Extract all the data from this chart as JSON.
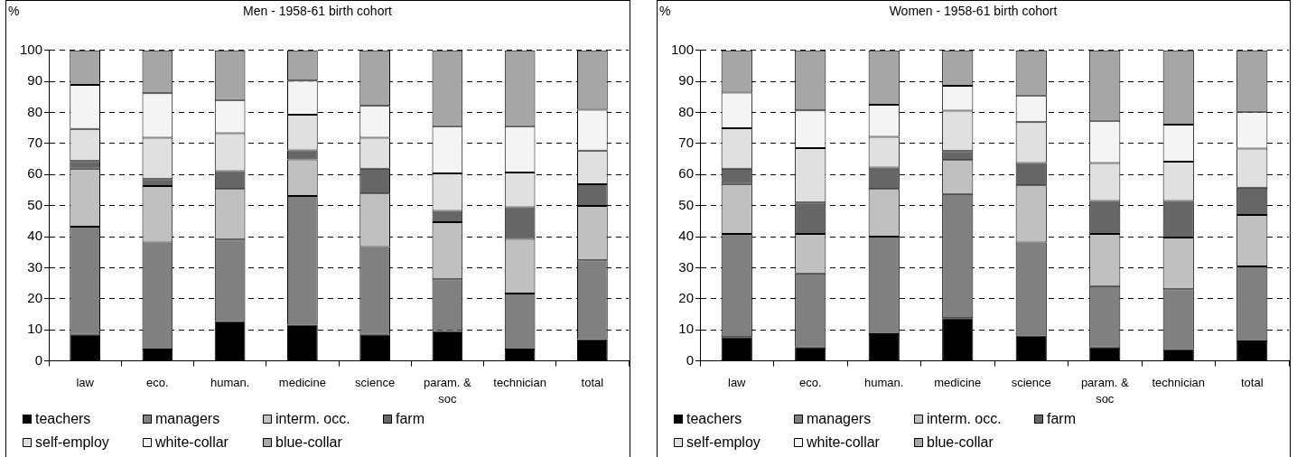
{
  "chart_data": [
    {
      "type": "bar",
      "title": "Men - 1958-61 birth cohort",
      "ylabel": "%",
      "stacked": true,
      "categories": [
        "law",
        "eco.",
        "human.",
        "medicine",
        "science",
        "param. & soc",
        "technician",
        "total"
      ],
      "series": [
        {
          "name": "teachers",
          "color": "#000000",
          "values": [
            8.4,
            3.7,
            12.8,
            11.7,
            8.4,
            9.6,
            3.7,
            7.0
          ]
        },
        {
          "name": "managers",
          "color": "#808080",
          "values": [
            34.8,
            34.4,
            26.3,
            41.4,
            28.3,
            16.7,
            18.0,
            25.4
          ]
        },
        {
          "name": "interm. occ.",
          "color": "#c0c0c0",
          "values": [
            18.7,
            18.2,
            16.3,
            11.8,
            17.2,
            18.4,
            17.6,
            17.5
          ]
        },
        {
          "name": "farm",
          "color": "#666666",
          "values": [
            2.5,
            2.3,
            5.7,
            2.9,
            8.0,
            3.6,
            10.2,
            7.0
          ]
        },
        {
          "name": "self-employ",
          "color": "#e0e0e0",
          "values": [
            10.3,
            13.3,
            12.2,
            11.5,
            10.0,
            12.1,
            11.2,
            10.8
          ]
        },
        {
          "name": "white-collar",
          "color": "#f4f4f4",
          "values": [
            14.2,
            14.3,
            10.7,
            11.0,
            10.2,
            15.2,
            14.9,
            13.2
          ]
        },
        {
          "name": "blue-collar",
          "color": "#a6a6a6",
          "values": [
            11.1,
            13.8,
            16.0,
            9.7,
            17.9,
            24.4,
            24.4,
            19.1
          ]
        }
      ],
      "ylim": [
        0,
        100
      ],
      "yticks": [
        0,
        10,
        20,
        30,
        40,
        50,
        60,
        70,
        80,
        90,
        100
      ],
      "grid": "y",
      "legend": "bottom"
    },
    {
      "type": "bar",
      "title": "Women - 1958-61 birth cohort",
      "ylabel": "%",
      "stacked": true,
      "categories": [
        "law",
        "eco.",
        "human.",
        "medicine",
        "science",
        "param. & soc",
        "technician",
        "total"
      ],
      "series": [
        {
          "name": "teachers",
          "color": "#000000",
          "values": [
            7.7,
            4.3,
            8.6,
            13.8,
            8.2,
            4.3,
            3.8,
            6.3
          ]
        },
        {
          "name": "managers",
          "color": "#808080",
          "values": [
            33.2,
            23.9,
            31.4,
            40.0,
            29.9,
            19.8,
            19.3,
            24.1
          ]
        },
        {
          "name": "interm. occ.",
          "color": "#c0c0c0",
          "values": [
            16.1,
            12.7,
            15.4,
            10.9,
            18.4,
            16.8,
            16.6,
            16.6
          ]
        },
        {
          "name": "farm",
          "color": "#666666",
          "values": [
            4.9,
            10.1,
            6.9,
            2.9,
            7.2,
            10.6,
            11.8,
            8.8
          ]
        },
        {
          "name": "self-employ",
          "color": "#e0e0e0",
          "values": [
            13.0,
            17.5,
            9.9,
            13.0,
            13.2,
            12.2,
            12.7,
            12.6
          ]
        },
        {
          "name": "white-collar",
          "color": "#f4f4f4",
          "values": [
            11.5,
            12.2,
            10.3,
            8.0,
            8.6,
            13.6,
            11.9,
            11.8
          ]
        },
        {
          "name": "blue-collar",
          "color": "#a6a6a6",
          "values": [
            13.6,
            19.3,
            17.5,
            11.4,
            14.5,
            22.7,
            23.9,
            19.8
          ]
        }
      ],
      "ylim": [
        0,
        100
      ],
      "yticks": [
        0,
        10,
        20,
        30,
        40,
        50,
        60,
        70,
        80,
        90,
        100
      ],
      "grid": "y",
      "legend": "bottom"
    }
  ]
}
